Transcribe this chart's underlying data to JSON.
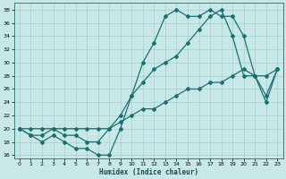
{
  "xlabel": "Humidex (Indice chaleur)",
  "ylabel": "",
  "xlim": [
    -0.5,
    23.5
  ],
  "ylim": [
    15.5,
    39
  ],
  "yticks": [
    16,
    18,
    20,
    22,
    24,
    26,
    28,
    30,
    32,
    34,
    36,
    38
  ],
  "xticks": [
    0,
    1,
    2,
    3,
    4,
    5,
    6,
    7,
    8,
    9,
    10,
    11,
    12,
    13,
    14,
    15,
    16,
    17,
    18,
    19,
    20,
    21,
    22,
    23
  ],
  "bg_color": "#c8e8e8",
  "grid_color": "#a8cccc",
  "line_color": "#1a7070",
  "lines": [
    {
      "x": [
        0,
        1,
        2,
        3,
        4,
        5,
        6,
        7,
        8,
        9,
        10,
        11,
        12,
        13,
        14,
        15,
        16,
        17,
        18,
        19,
        20,
        21,
        22,
        23
      ],
      "y": [
        20,
        19,
        18,
        19,
        18,
        17,
        17,
        16,
        16,
        20,
        25,
        30,
        33,
        37,
        38,
        37,
        37,
        38,
        37,
        37,
        34,
        28,
        24,
        29
      ]
    },
    {
      "x": [
        0,
        1,
        2,
        3,
        4,
        5,
        6,
        7,
        8,
        9,
        10,
        11,
        12,
        13,
        14,
        15,
        16,
        17,
        18,
        19,
        20,
        21,
        22,
        23
      ],
      "y": [
        20,
        19,
        19,
        20,
        19,
        19,
        18,
        18,
        20,
        22,
        25,
        27,
        29,
        30,
        31,
        33,
        35,
        37,
        38,
        34,
        28,
        28,
        25,
        29
      ]
    },
    {
      "x": [
        0,
        1,
        2,
        3,
        4,
        5,
        6,
        7,
        8,
        9,
        10,
        11,
        12,
        13,
        14,
        15,
        16,
        17,
        18,
        19,
        20,
        21,
        22,
        23
      ],
      "y": [
        20,
        20,
        20,
        20,
        20,
        20,
        20,
        20,
        20,
        21,
        22,
        23,
        23,
        24,
        25,
        26,
        26,
        27,
        27,
        28,
        29,
        28,
        28,
        29
      ]
    }
  ],
  "marker": "D",
  "markersize": 2.0,
  "linewidth": 0.9
}
